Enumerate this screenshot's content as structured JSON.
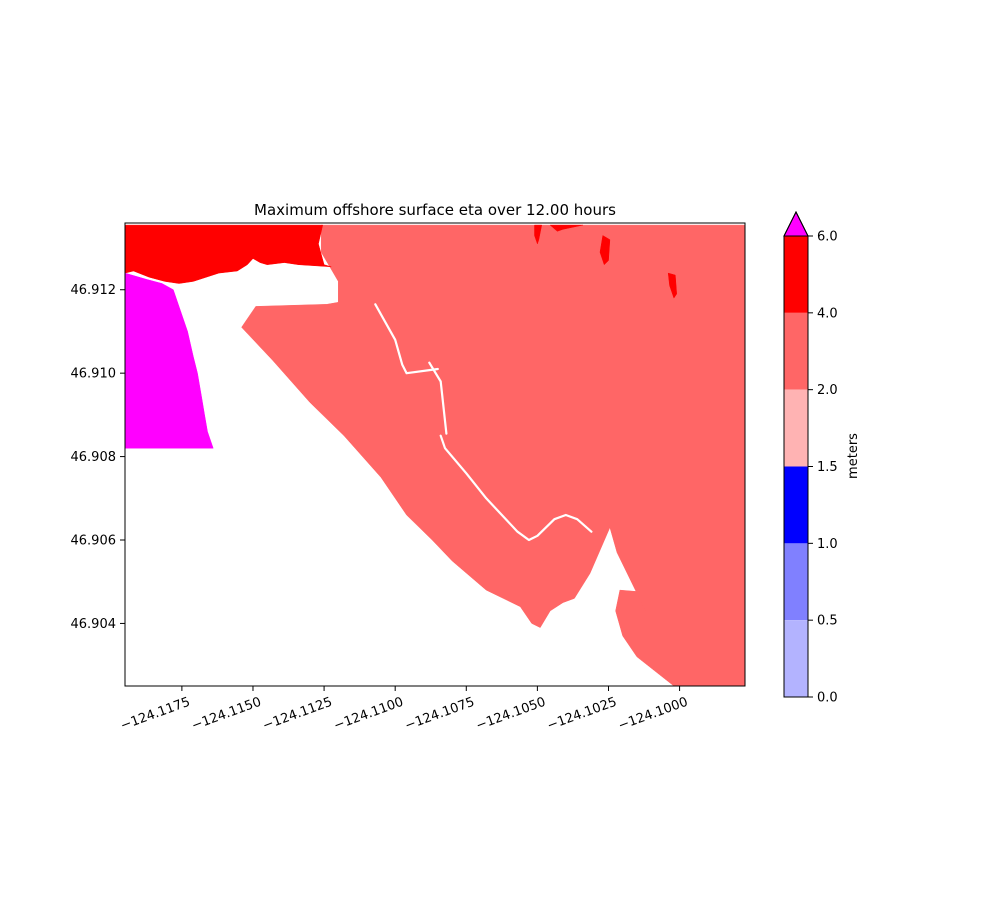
{
  "chart_data": {
    "type": "heatmap",
    "title": "Maximum offshore surface eta over 12.00 hours",
    "xlabel": "",
    "ylabel": "",
    "xlim": [
      -124.1195,
      -124.0977
    ],
    "ylim": [
      46.9025,
      46.9136
    ],
    "x_ticks": [
      -124.1175,
      -124.115,
      -124.1125,
      -124.11,
      -124.1075,
      -124.105,
      -124.1025,
      -124.1
    ],
    "x_tick_labels": [
      "−124.1175",
      "−124.1150",
      "−124.1125",
      "−124.1100",
      "−124.1075",
      "−124.1050",
      "−124.1025",
      "−124.1000"
    ],
    "y_ticks": [
      46.904,
      46.906,
      46.908,
      46.91,
      46.912
    ],
    "y_tick_labels": [
      "46.904",
      "46.906",
      "46.908",
      "46.910",
      "46.912"
    ],
    "grid": false,
    "colorbar": {
      "label": "meters",
      "levels": [
        0.0,
        0.5,
        1.0,
        1.5,
        2.0,
        4.0,
        6.0
      ],
      "tick_labels": [
        "0.0",
        "0.5",
        "1.0",
        "1.5",
        "2.0",
        "4.0",
        "6.0"
      ],
      "colors": [
        "#b3b3ff",
        "#8080ff",
        "#0000ff",
        "#ffb3b3",
        "#ff6666",
        "#ff0000"
      ],
      "extend_max_color": "#ff00ff",
      "evenly_spaced": true
    },
    "regions": [
      {
        "name": "offshore-eta-2-to-4m",
        "level_range": [
          2.0,
          4.0
        ],
        "color": "#ff6666",
        "polygon": [
          [
            -124.1126,
            46.91355
          ],
          [
            -124.10455,
            46.91355
          ],
          [
            -124.0977,
            46.91355
          ],
          [
            -124.0977,
            46.9025
          ],
          [
            -124.1002,
            46.9025
          ],
          [
            -124.1015,
            46.9032
          ],
          [
            -124.102,
            46.9037
          ],
          [
            -124.10225,
            46.9043
          ],
          [
            -124.1021,
            46.9048
          ],
          [
            -124.10125,
            46.90475
          ],
          [
            -124.1011,
            46.9046
          ],
          [
            -124.1012,
            46.9043
          ],
          [
            -124.1022,
            46.9057
          ],
          [
            -124.10245,
            46.9063
          ],
          [
            -124.10315,
            46.9052
          ],
          [
            -124.1037,
            46.9046
          ],
          [
            -124.1041,
            46.9045
          ],
          [
            -124.10455,
            46.9043
          ],
          [
            -124.1049,
            46.9039
          ],
          [
            -124.1052,
            46.904
          ],
          [
            -124.1056,
            46.9044
          ],
          [
            -124.1062,
            46.9046
          ],
          [
            -124.1068,
            46.9048
          ],
          [
            -124.108,
            46.9055
          ],
          [
            -124.1087,
            46.906
          ],
          [
            -124.1096,
            46.9066
          ],
          [
            -124.1105,
            46.9075
          ],
          [
            -124.1118,
            46.9085
          ],
          [
            -124.113,
            46.9093
          ],
          [
            -124.1143,
            46.9103
          ],
          [
            -124.1154,
            46.9111
          ],
          [
            -124.1153,
            46.9112
          ],
          [
            -124.1149,
            46.9116
          ],
          [
            -124.1124,
            46.91165
          ],
          [
            -124.112,
            46.9117
          ],
          [
            -124.112,
            46.9122
          ],
          [
            -124.1123,
            46.91255
          ],
          [
            -124.1126,
            46.9129
          ]
        ]
      },
      {
        "name": "offshore-eta-4-to-6m",
        "level_range": [
          4.0,
          6.0
        ],
        "color": "#ff0000",
        "polygon": [
          [
            -124.1195,
            46.91355
          ],
          [
            -124.11255,
            46.91355
          ],
          [
            -124.1127,
            46.9131
          ],
          [
            -124.1125,
            46.9126
          ],
          [
            -124.11225,
            46.91255
          ],
          [
            -124.1134,
            46.9126
          ],
          [
            -124.1139,
            46.91265
          ],
          [
            -124.1145,
            46.9126
          ],
          [
            -124.11475,
            46.91265
          ],
          [
            -124.115,
            46.91275
          ],
          [
            -124.1152,
            46.9126
          ],
          [
            -124.11555,
            46.91245
          ],
          [
            -124.1162,
            46.9124
          ],
          [
            -124.1171,
            46.9122
          ],
          [
            -124.1176,
            46.91215
          ],
          [
            -124.1181,
            46.9122
          ],
          [
            -124.11865,
            46.9123
          ],
          [
            -124.1192,
            46.91245
          ],
          [
            -124.1195,
            46.9124
          ]
        ]
      },
      {
        "name": "offshore-eta-above-6m",
        "level_range": [
          6.0,
          null
        ],
        "color": "#ff00ff",
        "polygon": [
          [
            -124.1195,
            46.9124
          ],
          [
            -124.11875,
            46.91225
          ],
          [
            -124.1182,
            46.91215
          ],
          [
            -124.1178,
            46.912
          ],
          [
            -124.1176,
            46.9116
          ],
          [
            -124.1173,
            46.911
          ],
          [
            -124.1171,
            46.9104
          ],
          [
            -124.11695,
            46.91
          ],
          [
            -124.1168,
            46.9094
          ],
          [
            -124.1167,
            46.909
          ],
          [
            -124.1166,
            46.9086
          ],
          [
            -124.1164,
            46.9082
          ],
          [
            -124.1195,
            46.9082
          ]
        ]
      },
      {
        "name": "east-red-streak-1",
        "level_range": [
          4.0,
          6.0
        ],
        "color": "#ff0000",
        "polygon": [
          [
            -124.1051,
            46.91355
          ],
          [
            -124.10485,
            46.91355
          ],
          [
            -124.10495,
            46.9132
          ],
          [
            -124.105,
            46.9131
          ],
          [
            -124.1051,
            46.9133
          ]
        ]
      },
      {
        "name": "east-red-streak-2",
        "level_range": [
          4.0,
          6.0
        ],
        "color": "#ff0000",
        "polygon": [
          [
            -124.1027,
            46.9133
          ],
          [
            -124.10245,
            46.9132
          ],
          [
            -124.1025,
            46.9127
          ],
          [
            -124.10265,
            46.9126
          ],
          [
            -124.1028,
            46.9129
          ]
        ]
      },
      {
        "name": "east-red-streak-3",
        "level_range": [
          4.0,
          6.0
        ],
        "color": "#ff0000",
        "polygon": [
          [
            -124.1004,
            46.9124
          ],
          [
            -124.10015,
            46.91235
          ],
          [
            -124.1001,
            46.9119
          ],
          [
            -124.1002,
            46.9118
          ],
          [
            -124.10035,
            46.9121
          ]
        ]
      },
      {
        "name": "northeast-red-patch",
        "level_range": [
          4.0,
          6.0
        ],
        "color": "#ff0000",
        "polygon": [
          [
            -124.10455,
            46.91355
          ],
          [
            -124.1034,
            46.91355
          ],
          [
            -124.1041,
            46.91345
          ],
          [
            -124.1043,
            46.9134
          ]
        ]
      }
    ],
    "dry_lines": [
      [
        [
          -124.1107,
          46.91165
        ],
        [
          -124.11,
          46.9108
        ],
        [
          -124.10975,
          46.9102
        ],
        [
          -124.1096,
          46.91
        ],
        [
          -124.1085,
          46.9101
        ]
      ],
      [
        [
          -124.1088,
          46.91025
        ],
        [
          -124.1084,
          46.9098
        ],
        [
          -124.1082,
          46.90855
        ]
      ],
      [
        [
          -124.1084,
          46.9085
        ],
        [
          -124.10825,
          46.9082
        ],
        [
          -124.1075,
          46.9076
        ],
        [
          -124.1068,
          46.907
        ],
        [
          -124.1057,
          46.9062
        ],
        [
          -124.1053,
          46.906
        ],
        [
          -124.105,
          46.9061
        ],
        [
          -124.1044,
          46.9065
        ],
        [
          -124.104,
          46.9066
        ],
        [
          -124.1036,
          46.9065
        ],
        [
          -124.1031,
          46.9062
        ]
      ]
    ]
  }
}
